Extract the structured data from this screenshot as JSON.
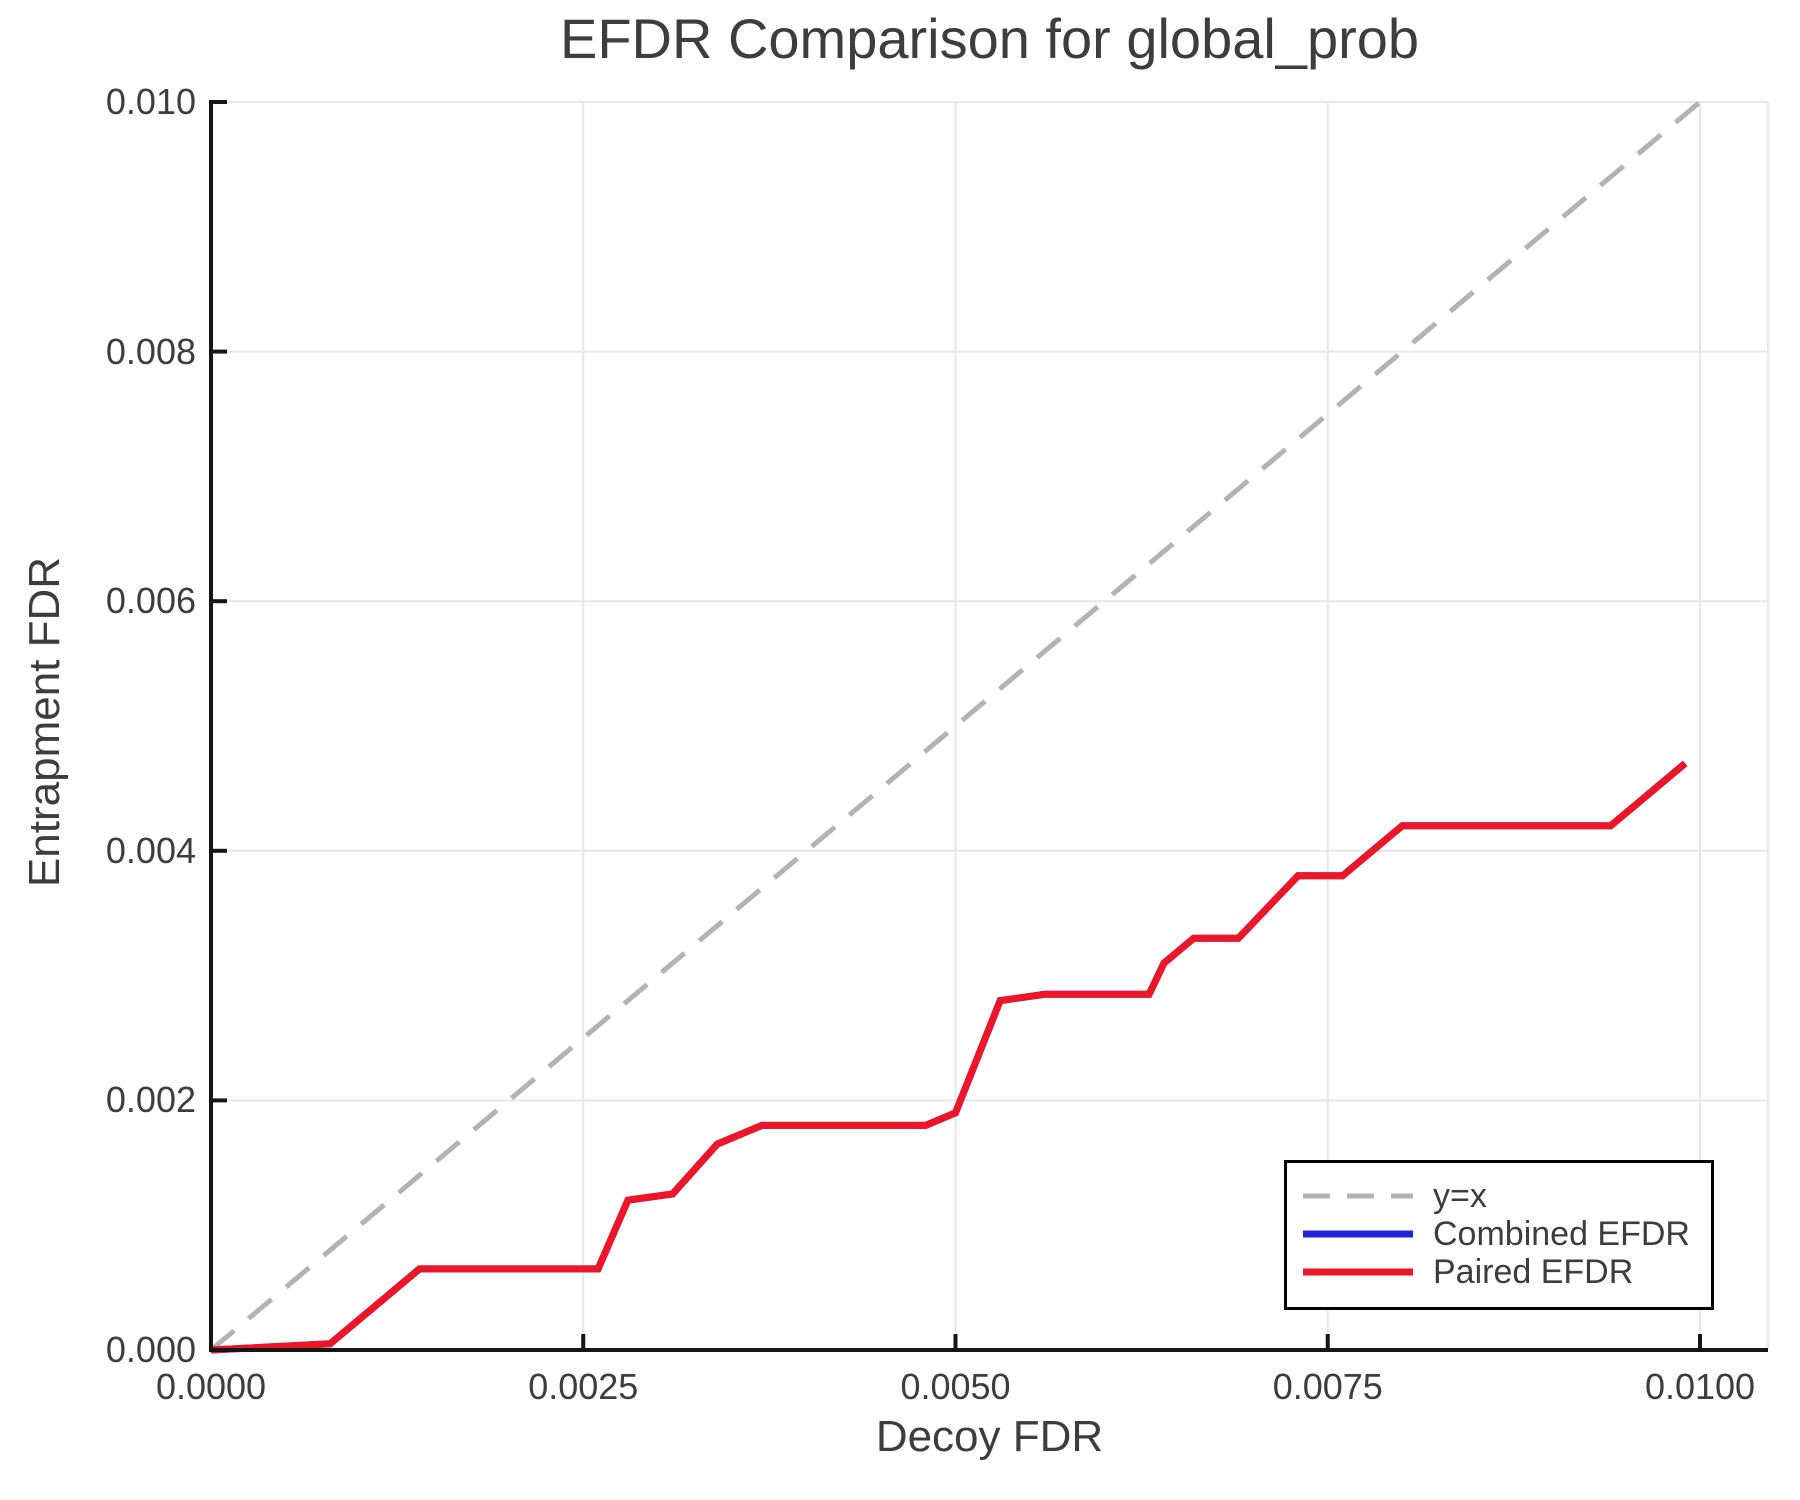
{
  "title": "EFDR Comparison for global_prob",
  "axes": {
    "xlabel": "Decoy FDR",
    "ylabel": "Entrapment FDR",
    "x_ticks": {
      "values": [
        0.0,
        0.0025,
        0.005,
        0.0075,
        0.01
      ],
      "labels": [
        "0.0000",
        "0.0025",
        "0.0050",
        "0.0075",
        "0.0100"
      ]
    },
    "y_ticks": {
      "values": [
        0.0,
        0.002,
        0.004,
        0.006,
        0.008,
        0.01
      ],
      "labels": [
        "0.000",
        "0.002",
        "0.004",
        "0.006",
        "0.008",
        "0.010"
      ]
    }
  },
  "legend": {
    "entries": [
      {
        "label": "y=x",
        "color": "#b3b3b3",
        "dashed": true
      },
      {
        "label": "Combined EFDR",
        "color": "#2424dd",
        "dashed": false
      },
      {
        "label": "Paired EFDR",
        "color": "#ee1526",
        "dashed": false
      }
    ]
  },
  "colors": {
    "grid": "#e7e7e7",
    "frame": "#e7e7e7",
    "spine": "#161616",
    "identity_line": "#b3b3b3",
    "combined": "#2424dd",
    "paired": "#ee1526",
    "text": "#3d3d3d"
  },
  "chart_data": {
    "type": "line",
    "title": "EFDR Comparison for global_prob",
    "xlabel": "Decoy FDR",
    "ylabel": "Entrapment FDR",
    "xlim": [
      0.0,
      0.0104
    ],
    "ylim": [
      0.0,
      0.01
    ],
    "grid": true,
    "legend_position": "bottom-right",
    "reference_line": {
      "name": "y=x",
      "from": [
        0.0,
        0.0
      ],
      "to": [
        0.01,
        0.01
      ],
      "style": "dashed",
      "color": "#b3b3b3"
    },
    "series": [
      {
        "name": "Combined EFDR",
        "color": "#2424dd",
        "note": "identical to Paired EFDR and hidden beneath it",
        "x": [
          0.0,
          0.0008,
          0.0014,
          0.0026,
          0.0028,
          0.0031,
          0.0034,
          0.0037,
          0.0048,
          0.005,
          0.0053,
          0.0056,
          0.0063,
          0.0064,
          0.0066,
          0.0069,
          0.0073,
          0.0076,
          0.008,
          0.0094,
          0.0099
        ],
        "y": [
          0.0,
          5e-05,
          0.00065,
          0.00065,
          0.0012,
          0.00125,
          0.00165,
          0.0018,
          0.0018,
          0.0019,
          0.0028,
          0.00285,
          0.00285,
          0.0031,
          0.0033,
          0.0033,
          0.0038,
          0.0038,
          0.0042,
          0.0042,
          0.0047
        ]
      },
      {
        "name": "Paired EFDR",
        "color": "#ee1526",
        "x": [
          0.0,
          0.0008,
          0.0014,
          0.0026,
          0.0028,
          0.0031,
          0.0034,
          0.0037,
          0.0048,
          0.005,
          0.0053,
          0.0056,
          0.0063,
          0.0064,
          0.0066,
          0.0069,
          0.0073,
          0.0076,
          0.008,
          0.0094,
          0.0099
        ],
        "y": [
          0.0,
          5e-05,
          0.00065,
          0.00065,
          0.0012,
          0.00125,
          0.00165,
          0.0018,
          0.0018,
          0.0019,
          0.0028,
          0.00285,
          0.00285,
          0.0031,
          0.0033,
          0.0033,
          0.0038,
          0.0038,
          0.0042,
          0.0042,
          0.0047
        ]
      }
    ]
  }
}
